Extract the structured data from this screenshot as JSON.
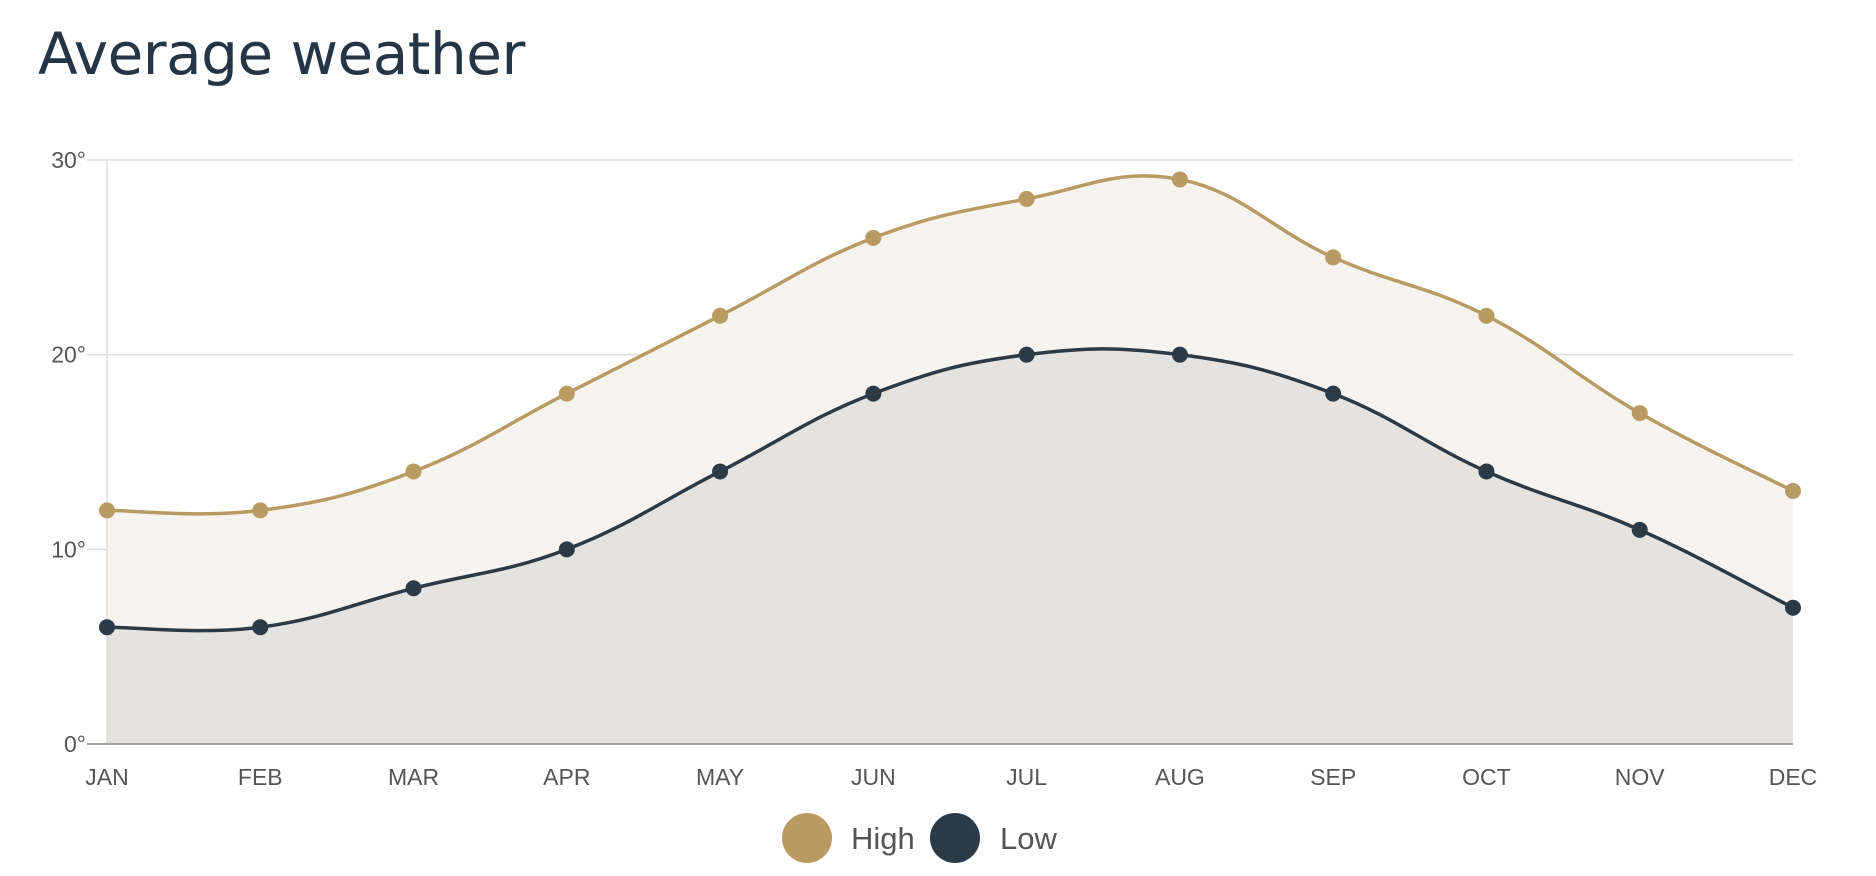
{
  "title": "Average weather",
  "colors": {
    "high": "#b89a62",
    "low": "#2b3a47",
    "high_fill": "#f7f4ef",
    "low_fill": "#e4e3df",
    "grid": "#dddddd",
    "text": "#555555",
    "title": "#243645"
  },
  "chart_data": {
    "type": "area",
    "categories": [
      "JAN",
      "FEB",
      "MAR",
      "APR",
      "MAY",
      "JUN",
      "JUL",
      "AUG",
      "SEP",
      "OCT",
      "NOV",
      "DEC"
    ],
    "series": [
      {
        "name": "High",
        "values": [
          12,
          12,
          14,
          18,
          22,
          26,
          28,
          29,
          25,
          22,
          17,
          13
        ]
      },
      {
        "name": "Low",
        "values": [
          6,
          6,
          8,
          10,
          14,
          18,
          20,
          20,
          18,
          14,
          11,
          7
        ]
      }
    ],
    "yticks": [
      "0°",
      "10°",
      "20°",
      "30°"
    ],
    "ylim": [
      0,
      30
    ],
    "grid": true,
    "legend": "bottom-center",
    "xlabel": "",
    "ylabel": ""
  }
}
